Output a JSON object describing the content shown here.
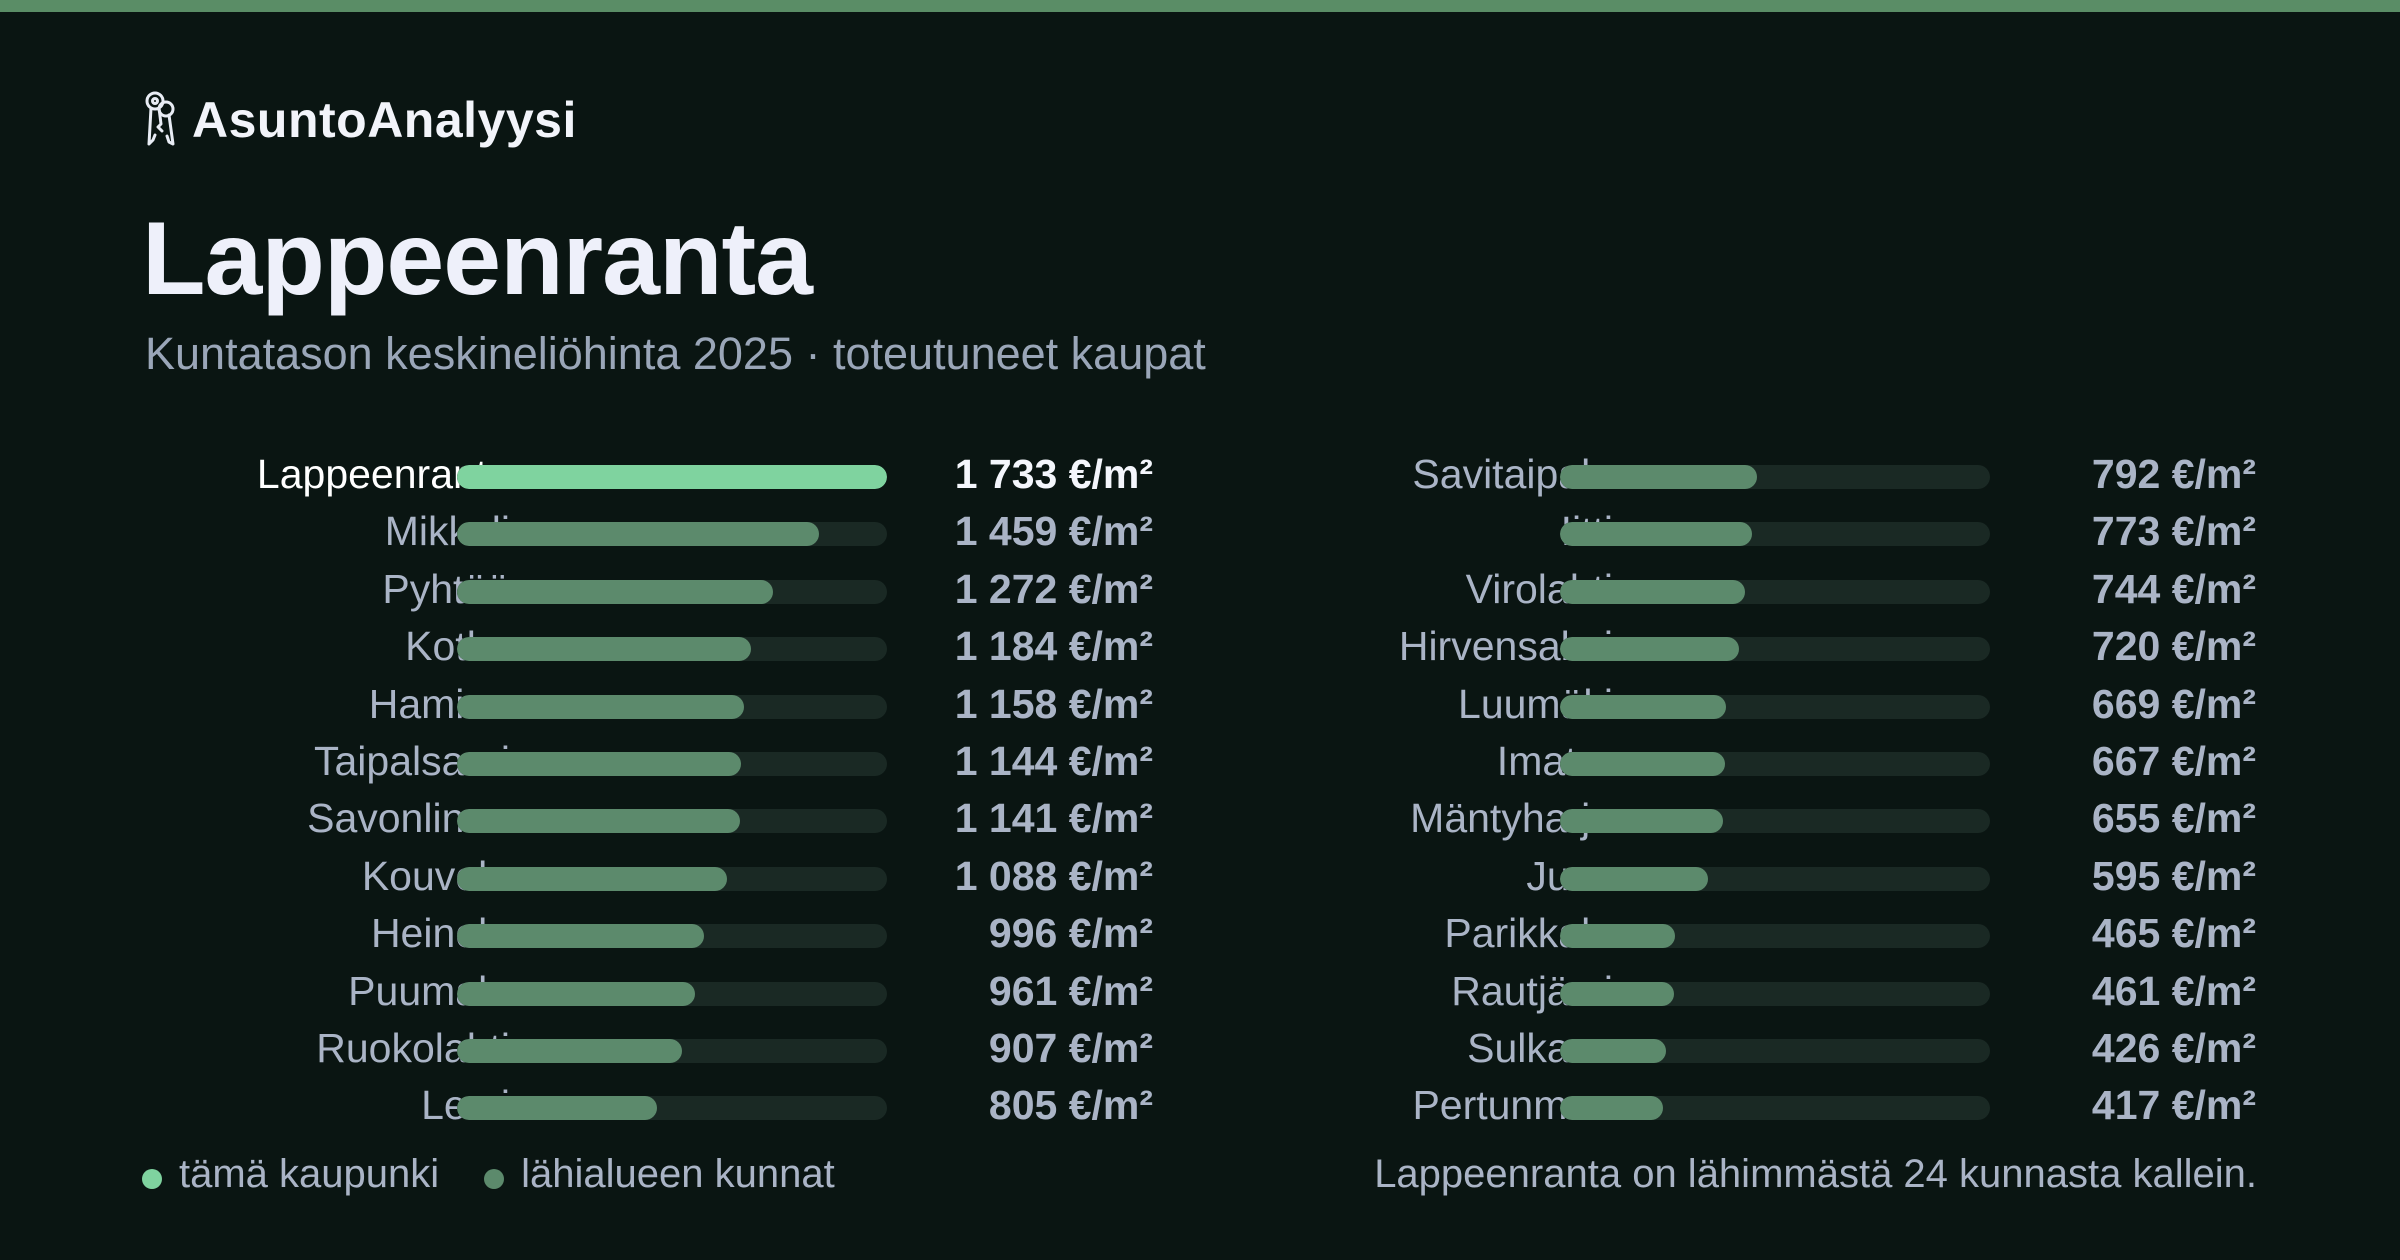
{
  "brand": {
    "name": "AsuntoAnalyysi",
    "icon": "keys-icon"
  },
  "page": {
    "title": "Lappeenranta",
    "subtitle": "Kuntatason keskineliöhinta 2025 · toteutuneet kaupat"
  },
  "colors": {
    "highlight": "#7fd39f",
    "neighbor": "#5c8a6c",
    "background": "#0a1512",
    "accent_bar": "#5a8d66"
  },
  "chart_data": {
    "type": "bar",
    "orientation": "horizontal",
    "unit": "€/m²",
    "xlim": [
      0,
      1733
    ],
    "highlight": "Lappeenranta",
    "rows": [
      {
        "name": "Lappeenranta",
        "value": 1733,
        "label": "1 733 €/m²"
      },
      {
        "name": "Mikkeli",
        "value": 1459,
        "label": "1 459 €/m²"
      },
      {
        "name": "Pyhtää",
        "value": 1272,
        "label": "1 272 €/m²"
      },
      {
        "name": "Kotka",
        "value": 1184,
        "label": "1 184 €/m²"
      },
      {
        "name": "Hamina",
        "value": 1158,
        "label": "1 158 €/m²"
      },
      {
        "name": "Taipalsaari",
        "value": 1144,
        "label": "1 144 €/m²"
      },
      {
        "name": "Savonlinna",
        "value": 1141,
        "label": "1 141 €/m²"
      },
      {
        "name": "Kouvola",
        "value": 1088,
        "label": "1 088 €/m²"
      },
      {
        "name": "Heinola",
        "value": 996,
        "label": "996 €/m²"
      },
      {
        "name": "Puumala",
        "value": 961,
        "label": "961 €/m²"
      },
      {
        "name": "Ruokolahti",
        "value": 907,
        "label": "907 €/m²"
      },
      {
        "name": "Lemi",
        "value": 805,
        "label": "805 €/m²"
      },
      {
        "name": "Savitaipale",
        "value": 792,
        "label": "792 €/m²"
      },
      {
        "name": "Iitti",
        "value": 773,
        "label": "773 €/m²"
      },
      {
        "name": "Virolahti",
        "value": 744,
        "label": "744 €/m²"
      },
      {
        "name": "Hirvensalmi",
        "value": 720,
        "label": "720 €/m²"
      },
      {
        "name": "Luumäki",
        "value": 669,
        "label": "669 €/m²"
      },
      {
        "name": "Imatra",
        "value": 667,
        "label": "667 €/m²"
      },
      {
        "name": "Mäntyharju",
        "value": 655,
        "label": "655 €/m²"
      },
      {
        "name": "Juva",
        "value": 595,
        "label": "595 €/m²"
      },
      {
        "name": "Parikkala",
        "value": 465,
        "label": "465 €/m²"
      },
      {
        "name": "Rautjärvi",
        "value": 461,
        "label": "461 €/m²"
      },
      {
        "name": "Sulkava",
        "value": 426,
        "label": "426 €/m²"
      },
      {
        "name": "Pertunmaa",
        "value": 417,
        "label": "417 €/m²"
      }
    ]
  },
  "legend": {
    "city": "tämä kaupunki",
    "neighbors": "lähialueen kunnat"
  },
  "footnote": "Lappeenranta on lähimmästä 24 kunnasta kallein."
}
